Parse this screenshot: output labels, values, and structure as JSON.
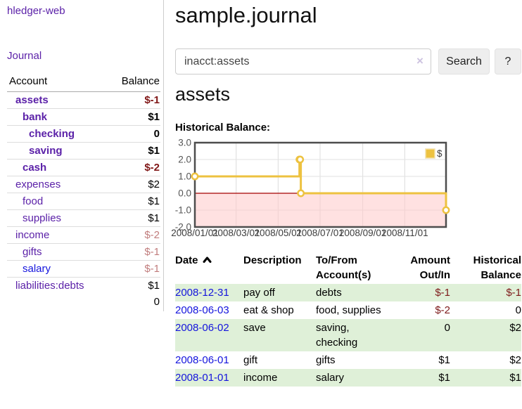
{
  "brand": "hledger-web",
  "nav": {
    "journal": "Journal"
  },
  "page": {
    "title": "sample.journal",
    "account_heading": "assets",
    "chart_title": "Historical Balance:"
  },
  "search": {
    "value": "inacct:assets",
    "clear": "×",
    "submit": "Search",
    "help": "?"
  },
  "sidebar_accounts": {
    "col_account": "Account",
    "col_balance": "Balance",
    "rows": [
      {
        "name": "assets",
        "balance": "$-1",
        "depth": 1,
        "bold": true,
        "neg": "dark"
      },
      {
        "name": "bank",
        "balance": "$1",
        "depth": 2,
        "bold": true
      },
      {
        "name": "checking",
        "balance": "0",
        "depth": 3,
        "bold": true
      },
      {
        "name": "saving",
        "balance": "$1",
        "depth": 3,
        "bold": true
      },
      {
        "name": "cash",
        "balance": "$-2",
        "depth": 2,
        "bold": true,
        "neg": "dark"
      },
      {
        "name": "expenses",
        "balance": "$2",
        "depth": 1
      },
      {
        "name": "food",
        "balance": "$1",
        "depth": 2
      },
      {
        "name": "supplies",
        "balance": "$1",
        "depth": 2
      },
      {
        "name": "income",
        "balance": "$-2",
        "depth": 1,
        "neg": "light"
      },
      {
        "name": "gifts",
        "balance": "$-1",
        "depth": 2,
        "neg": "light"
      },
      {
        "name": "salary",
        "balance": "$-1",
        "depth": 2,
        "neg": "light",
        "blue": true
      },
      {
        "name": "liabilities:debts",
        "balance": "$1",
        "depth": 1
      }
    ],
    "total": "0"
  },
  "chart_data": {
    "type": "line",
    "title": "Historical Balance",
    "legend": [
      {
        "label": "$",
        "color": "#edc240"
      }
    ],
    "legend_position": "top-right",
    "x_min": "2008-01-01",
    "x_max": "2008-12-31",
    "ylim": [
      -2,
      3
    ],
    "yticks": [
      3,
      2,
      1,
      0,
      -1,
      -2
    ],
    "ytick_labels": [
      "3.0",
      "2.0",
      "1.0",
      "0.0",
      "-1.0",
      "-2.0"
    ],
    "xticks": [
      {
        "date": "2008-01-01",
        "label": "2008/01/01"
      },
      {
        "date": "2008-03-01",
        "label": "2008/03/01"
      },
      {
        "date": "2008-05-01",
        "label": "2008/05/01"
      },
      {
        "date": "2008-07-01",
        "label": "2008/07/01"
      },
      {
        "date": "2008-09-01",
        "label": "2008/09/01"
      },
      {
        "date": "2008-11-01",
        "label": "2008/11/01"
      }
    ],
    "series": [
      {
        "name": "$",
        "color": "#edc240",
        "style": "step",
        "points": [
          {
            "x": "2008-01-01",
            "y": 1
          },
          {
            "x": "2008-06-01",
            "y": 2
          },
          {
            "x": "2008-06-02",
            "y": 2
          },
          {
            "x": "2008-06-03",
            "y": 0
          },
          {
            "x": "2008-12-31",
            "y": -1
          }
        ]
      }
    ],
    "grid": true,
    "negative_region_fill": "#ffc9c9",
    "zero_line_color": "#a40000"
  },
  "register": {
    "columns": [
      {
        "label": [
          "Date"
        ],
        "align": "left",
        "sort": "asc"
      },
      {
        "label": [
          "Description"
        ],
        "align": "left"
      },
      {
        "label": [
          "To/From",
          "Account(s)"
        ],
        "align": "left"
      },
      {
        "label": [
          "Amount",
          "Out/In"
        ],
        "align": "right"
      },
      {
        "label": [
          "Historical",
          "Balance"
        ],
        "align": "right"
      }
    ],
    "rows": [
      {
        "date": "2008-12-31",
        "description": "pay off",
        "accounts": "debts",
        "amount": "$-1",
        "amount_neg": true,
        "balance": "$-1",
        "balance_neg": true
      },
      {
        "date": "2008-06-03",
        "description": "eat & shop",
        "accounts": "food, supplies",
        "amount": "$-2",
        "amount_neg": true,
        "balance": "0",
        "balance_neg": false
      },
      {
        "date": "2008-06-02",
        "description": "save",
        "accounts": "saving, checking",
        "amount": "0",
        "amount_neg": false,
        "balance": "$2",
        "balance_neg": false
      },
      {
        "date": "2008-06-01",
        "description": "gift",
        "accounts": "gifts",
        "amount": "$1",
        "amount_neg": false,
        "balance": "$2",
        "balance_neg": false
      },
      {
        "date": "2008-01-01",
        "description": "income",
        "accounts": "salary",
        "amount": "$1",
        "amount_neg": false,
        "balance": "$1",
        "balance_neg": false
      }
    ]
  },
  "colors": {
    "link_purple": "#5b21a8",
    "link_blue": "#1414dd",
    "negative_dark": "#801717",
    "negative_light": "#c17d7d",
    "stripe_green": "#dff0d8",
    "chart_series": "#edc240",
    "chart_negative_fill": "#ffc9c9",
    "chart_zero_line": "#a40000",
    "chart_border": "#4d4d4d"
  }
}
